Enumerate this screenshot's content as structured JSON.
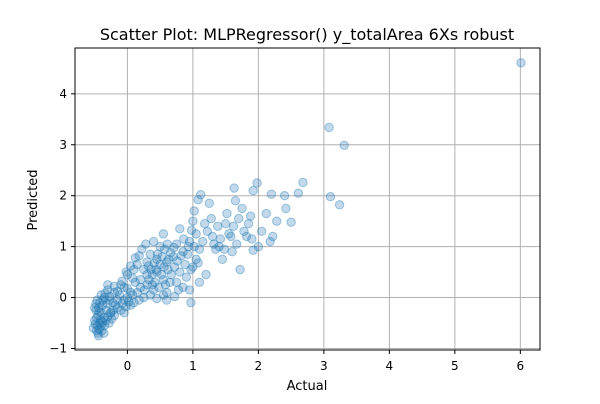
{
  "colors": {
    "point": "#1f77b4",
    "grid": "#b0b0b0",
    "axis": "#000000",
    "background": "#ffffff"
  },
  "chart_data": {
    "type": "scatter",
    "title": "Scatter Plot: MLPRegressor() y_totalArea 6Xs robust",
    "xlabel": "Actual",
    "ylabel": "Predicted",
    "xlim": [
      -0.8,
      6.3
    ],
    "ylim": [
      -1.03,
      4.9
    ],
    "xticks": [
      0,
      1,
      2,
      3,
      4,
      5,
      6
    ],
    "yticks": [
      -1,
      0,
      1,
      2,
      3,
      4
    ],
    "grid": true,
    "legend": "none",
    "point_alpha": 0.28,
    "points": [
      [
        6.01,
        4.61
      ],
      [
        3.08,
        3.34
      ],
      [
        3.31,
        2.99
      ],
      [
        3.1,
        1.98
      ],
      [
        3.24,
        1.82
      ],
      [
        2.68,
        2.26
      ],
      [
        2.61,
        2.05
      ],
      [
        2.4,
        2.0
      ],
      [
        2.2,
        2.03
      ],
      [
        2.42,
        1.75
      ],
      [
        2.5,
        1.48
      ],
      [
        2.28,
        1.5
      ],
      [
        2.12,
        1.65
      ],
      [
        2.18,
        1.1
      ],
      [
        2.22,
        1.2
      ],
      [
        2.0,
        1.0
      ],
      [
        1.92,
        0.93
      ],
      [
        1.72,
        0.55
      ],
      [
        1.98,
        2.25
      ],
      [
        1.92,
        2.1
      ],
      [
        1.63,
        2.15
      ],
      [
        1.65,
        1.9
      ],
      [
        1.75,
        1.75
      ],
      [
        1.7,
        1.55
      ],
      [
        1.5,
        1.45
      ],
      [
        1.25,
        1.85
      ],
      [
        1.12,
        2.02
      ],
      [
        1.08,
        1.92
      ],
      [
        1.02,
        1.7
      ],
      [
        1.0,
        1.5
      ],
      [
        0.98,
        1.32
      ],
      [
        0.95,
        1.1
      ],
      [
        1.05,
        0.75
      ],
      [
        1.2,
        0.45
      ],
      [
        1.1,
        0.3
      ],
      [
        0.95,
        0.15
      ],
      [
        0.97,
        -0.1
      ],
      [
        1.35,
        0.95
      ],
      [
        1.3,
        1.2
      ],
      [
        1.4,
        1.0
      ],
      [
        1.45,
        0.75
      ],
      [
        1.6,
        0.9
      ],
      [
        1.82,
        1.2
      ],
      [
        1.55,
        1.25
      ],
      [
        1.85,
        1.45
      ],
      [
        0.8,
        1.35
      ],
      [
        0.75,
        1.05
      ],
      [
        0.85,
        0.9
      ],
      [
        0.72,
        0.6
      ],
      [
        0.65,
        0.3
      ],
      [
        0.62,
        0.55
      ],
      [
        0.7,
        0.8
      ],
      [
        0.55,
        0.35
      ],
      [
        0.6,
        0.1
      ],
      [
        0.45,
        0.5
      ],
      [
        0.38,
        0.25
      ],
      [
        0.3,
        0.45
      ],
      [
        0.5,
        1.0
      ],
      [
        0.55,
        1.25
      ],
      [
        0.4,
        1.1
      ],
      [
        0.35,
        0.85
      ],
      [
        0.3,
        0.7
      ],
      [
        0.25,
        0.55
      ],
      [
        0.2,
        0.2
      ],
      [
        0.12,
        0.3
      ],
      [
        0.05,
        0.1
      ],
      [
        0.1,
        0.55
      ],
      [
        0.0,
        0.45
      ],
      [
        0.0,
        0.0
      ],
      [
        -0.05,
        0.2
      ],
      [
        -0.1,
        0.25
      ],
      [
        0.15,
        0.65
      ],
      [
        0.22,
        0.95
      ],
      [
        0.28,
        1.05
      ],
      [
        0.45,
        0.75
      ],
      [
        0.6,
        0.7
      ],
      [
        0.5,
        0.65
      ],
      [
        0.42,
        0.3
      ],
      [
        0.35,
        0.05
      ],
      [
        0.25,
        0.0
      ],
      [
        0.18,
        -0.05
      ],
      [
        0.1,
        -0.1
      ],
      [
        0.05,
        -0.15
      ],
      [
        -0.05,
        -0.05
      ],
      [
        -0.12,
        0.05
      ],
      [
        -0.15,
        -0.2
      ],
      [
        -0.2,
        0.1
      ],
      [
        -0.22,
        -0.1
      ],
      [
        -0.25,
        -0.3
      ],
      [
        -0.28,
        -0.05
      ],
      [
        -0.3,
        0.15
      ],
      [
        -0.32,
        -0.25
      ],
      [
        -0.35,
        0.0
      ],
      [
        -0.36,
        -0.4
      ],
      [
        -0.38,
        -0.15
      ],
      [
        -0.4,
        -0.3
      ],
      [
        -0.42,
        -0.5
      ],
      [
        -0.42,
        -0.1
      ],
      [
        -0.44,
        -0.2
      ],
      [
        -0.45,
        -0.35
      ],
      [
        -0.46,
        -0.55
      ],
      [
        -0.47,
        -0.4
      ],
      [
        -0.48,
        -0.25
      ],
      [
        -0.5,
        -0.45
      ],
      [
        -0.52,
        -0.6
      ],
      [
        -0.45,
        -0.7
      ],
      [
        -0.43,
        -0.62
      ],
      [
        -0.4,
        -0.55
      ],
      [
        -0.38,
        -0.48
      ],
      [
        -0.35,
        -0.55
      ],
      [
        -0.33,
        -0.45
      ],
      [
        -0.3,
        -0.38
      ],
      [
        -0.28,
        -0.5
      ],
      [
        -0.26,
        -0.3
      ],
      [
        -0.24,
        -0.42
      ],
      [
        -0.22,
        -0.25
      ],
      [
        -0.2,
        -0.35
      ],
      [
        -0.18,
        -0.15
      ],
      [
        -0.15,
        -0.05
      ],
      [
        -0.1,
        -0.25
      ],
      [
        -0.08,
        -0.12
      ],
      [
        -0.05,
        -0.3
      ],
      [
        -0.02,
        -0.18
      ],
      [
        0.02,
        -0.08
      ],
      [
        0.08,
        0.05
      ],
      [
        0.15,
        0.1
      ],
      [
        0.2,
        0.35
      ],
      [
        0.26,
        0.15
      ],
      [
        0.3,
        0.25
      ],
      [
        0.33,
        0.35
      ],
      [
        0.38,
        0.45
      ],
      [
        0.4,
        0.15
      ],
      [
        0.44,
        0.55
      ],
      [
        0.48,
        0.2
      ],
      [
        0.52,
        0.45
      ],
      [
        0.56,
        0.6
      ],
      [
        0.58,
        0.25
      ],
      [
        0.63,
        0.75
      ],
      [
        0.67,
        0.45
      ],
      [
        0.75,
        0.3
      ],
      [
        0.8,
        0.5
      ],
      [
        0.78,
        0.15
      ],
      [
        0.88,
        0.65
      ],
      [
        0.9,
        0.4
      ],
      [
        0.92,
        0.85
      ],
      [
        1.0,
        0.6
      ],
      [
        1.02,
        1.0
      ],
      [
        1.05,
        1.25
      ],
      [
        1.1,
        0.95
      ],
      [
        1.15,
        1.1
      ],
      [
        1.18,
        1.45
      ],
      [
        1.22,
        1.3
      ],
      [
        1.28,
        1.55
      ],
      [
        1.32,
        1.05
      ],
      [
        1.38,
        1.4
      ],
      [
        1.42,
        1.15
      ],
      [
        1.48,
        0.95
      ],
      [
        1.52,
        1.65
      ],
      [
        1.58,
        1.2
      ],
      [
        1.62,
        1.4
      ],
      [
        1.67,
        1.05
      ],
      [
        1.78,
        1.3
      ],
      [
        1.88,
        1.6
      ],
      [
        1.9,
        1.15
      ],
      [
        2.05,
        1.3
      ],
      [
        0.05,
        0.62
      ],
      [
        -0.02,
        0.5
      ],
      [
        0.12,
        0.78
      ],
      [
        0.18,
        0.82
      ],
      [
        0.08,
        0.38
      ],
      [
        -0.3,
        0.25
      ],
      [
        -0.2,
        0.22
      ],
      [
        -0.15,
        0.12
      ],
      [
        -0.08,
        0.32
      ],
      [
        0.0,
        0.18
      ],
      [
        -0.4,
        0.05
      ],
      [
        -0.37,
        -0.05
      ],
      [
        -0.34,
        0.08
      ],
      [
        -0.31,
        -0.12
      ],
      [
        -0.27,
        0.02
      ],
      [
        -0.48,
        -0.12
      ],
      [
        -0.5,
        -0.2
      ],
      [
        -0.46,
        -0.05
      ],
      [
        -0.43,
        -0.28
      ],
      [
        -0.41,
        -0.45
      ],
      [
        -0.49,
        -0.52
      ],
      [
        -0.47,
        -0.65
      ],
      [
        -0.44,
        -0.75
      ],
      [
        -0.39,
        -0.65
      ],
      [
        -0.36,
        -0.7
      ],
      [
        0.32,
        0.62
      ],
      [
        0.36,
        0.55
      ],
      [
        0.41,
        0.68
      ],
      [
        0.46,
        0.85
      ],
      [
        0.53,
        0.8
      ],
      [
        0.57,
        0.95
      ],
      [
        0.61,
        1.05
      ],
      [
        0.66,
        0.88
      ],
      [
        0.71,
        0.98
      ],
      [
        0.76,
        0.72
      ],
      [
        0.82,
        0.82
      ],
      [
        0.86,
        1.15
      ],
      [
        0.93,
        1.0
      ],
      [
        0.97,
        0.55
      ],
      [
        1.08,
        0.68
      ],
      [
        0.55,
        0.05
      ],
      [
        0.45,
        -0.02
      ],
      [
        0.6,
        -0.05
      ],
      [
        0.72,
        0.02
      ],
      [
        0.85,
        0.2
      ]
    ]
  }
}
